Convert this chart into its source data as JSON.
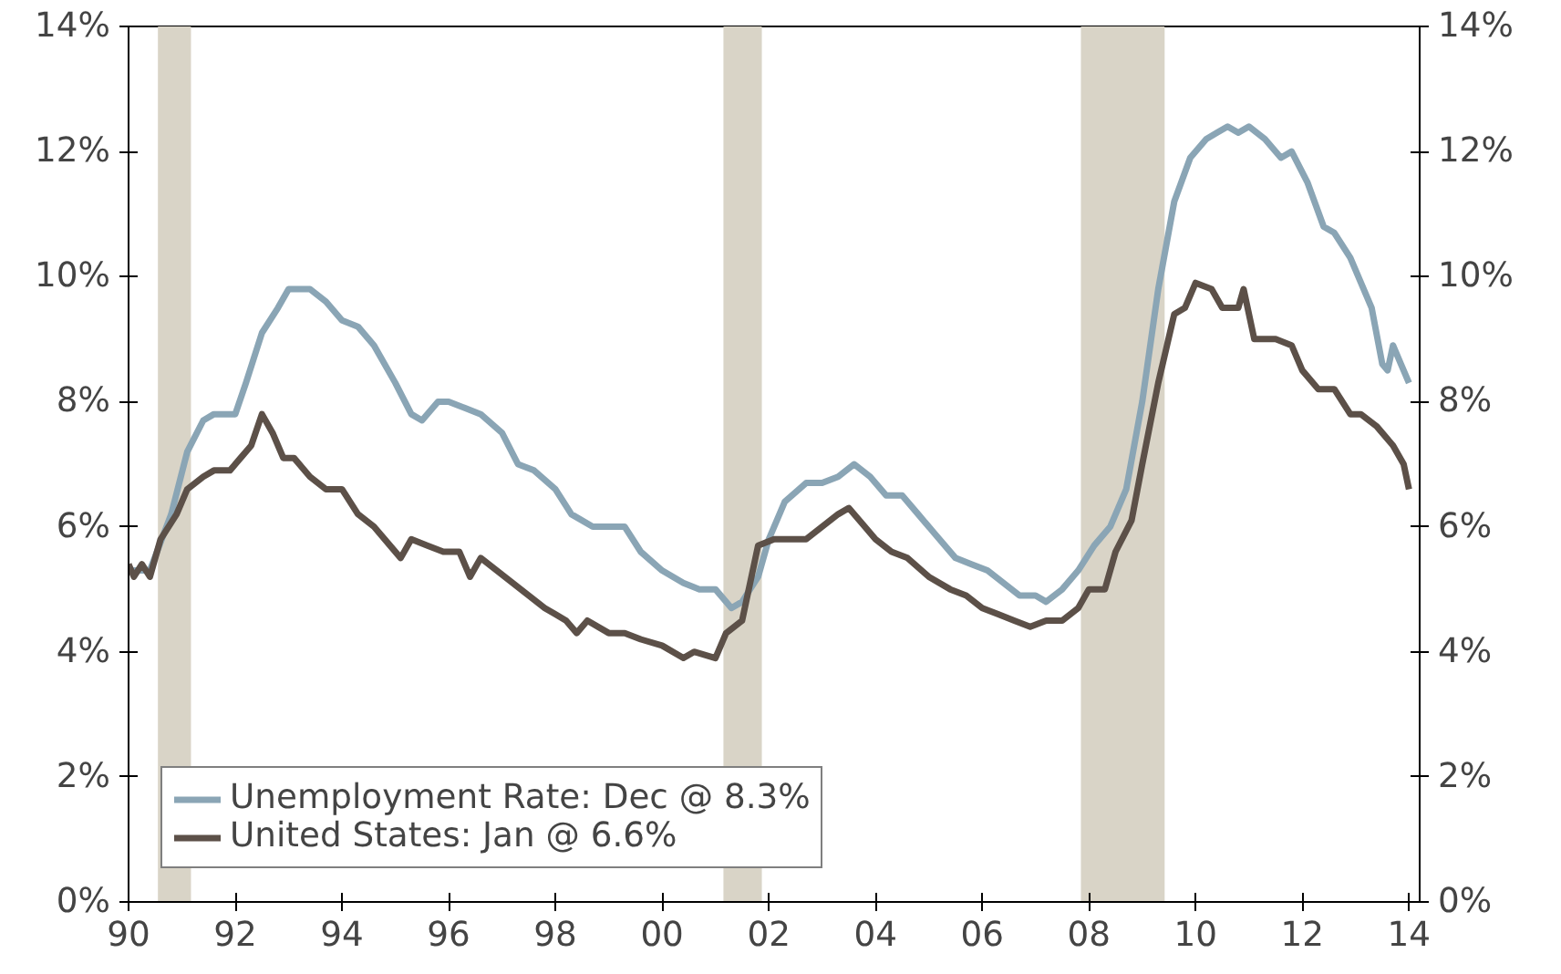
{
  "chart_data": {
    "type": "line",
    "x": [
      1990.0,
      1990.4,
      1990.8,
      1991.1,
      1991.4,
      1991.6,
      1992.0,
      1992.2,
      1992.5,
      1992.8,
      1993.0,
      1993.4,
      1993.7,
      1994.0,
      1994.3,
      1994.6,
      1995.0,
      1995.3,
      1995.5,
      1995.8,
      1996.0,
      1996.3,
      1996.6,
      1997.0,
      1997.3,
      1997.6,
      1998.0,
      1998.3,
      1998.7,
      1999.0,
      1999.3,
      1999.6,
      2000.0,
      2000.4,
      2000.7,
      2001.0,
      2001.3,
      2001.5,
      2001.8,
      2002.0,
      2002.3,
      2002.7,
      2003.0,
      2003.3,
      2003.6,
      2003.9,
      2004.2,
      2004.5,
      2004.8,
      2005.1,
      2005.5,
      2005.8,
      2006.1,
      2006.4,
      2006.7,
      2007.0,
      2007.2,
      2007.5,
      2007.8,
      2008.1,
      2008.4,
      2008.7,
      2009.0,
      2009.3,
      2009.6,
      2009.9,
      2010.2,
      2010.4,
      2010.6,
      2010.8,
      2011.0,
      2011.3,
      2011.6,
      2011.8,
      2012.1,
      2012.4,
      2012.6,
      2012.9,
      2013.1,
      2013.3,
      2013.5,
      2013.6,
      2013.7,
      2013.85,
      2014.0
    ],
    "series": [
      {
        "name": "Unemployment Rate: Dec @ 8.3%",
        "color": "#8aa5b5",
        "values": [
          5.3,
          5.3,
          6.2,
          7.2,
          7.7,
          7.8,
          7.8,
          8.3,
          9.1,
          9.5,
          9.8,
          9.8,
          9.6,
          9.3,
          9.2,
          8.9,
          8.3,
          7.8,
          7.7,
          8.0,
          8.0,
          7.9,
          7.8,
          7.5,
          7.0,
          6.9,
          6.6,
          6.2,
          6.0,
          6.0,
          6.0,
          5.6,
          5.3,
          5.1,
          5.0,
          5.0,
          4.7,
          4.8,
          5.2,
          5.8,
          6.4,
          6.7,
          6.7,
          6.8,
          7.0,
          6.8,
          6.5,
          6.5,
          6.2,
          5.9,
          5.5,
          5.4,
          5.3,
          5.1,
          4.9,
          4.9,
          4.8,
          5.0,
          5.3,
          5.7,
          6.0,
          6.6,
          8.0,
          9.8,
          11.2,
          11.9,
          12.2,
          12.3,
          12.4,
          12.3,
          12.4,
          12.2,
          11.9,
          12.0,
          11.5,
          10.8,
          10.7,
          10.3,
          9.9,
          9.5,
          8.6,
          8.5,
          8.9,
          8.6,
          8.3
        ]
      },
      {
        "name": "United States: Jan @ 6.6%",
        "color": "#5c5048",
        "x": [
          1990.0,
          1990.1,
          1990.25,
          1990.4,
          1990.6,
          1990.9,
          1991.1,
          1991.4,
          1991.6,
          1991.9,
          1992.1,
          1992.3,
          1992.5,
          1992.7,
          1992.9,
          1993.1,
          1993.4,
          1993.7,
          1994.0,
          1994.3,
          1994.6,
          1994.9,
          1995.1,
          1995.3,
          1995.6,
          1995.9,
          1996.2,
          1996.4,
          1996.6,
          1996.9,
          1997.2,
          1997.5,
          1997.8,
          1998.0,
          1998.2,
          1998.4,
          1998.6,
          1999.0,
          1999.3,
          1999.6,
          2000.0,
          2000.4,
          2000.6,
          2001.0,
          2001.2,
          2001.5,
          2001.8,
          2002.1,
          2002.4,
          2002.7,
          2003.0,
          2003.3,
          2003.5,
          2003.8,
          2004.0,
          2004.3,
          2004.6,
          2005.0,
          2005.4,
          2005.7,
          2006.0,
          2006.3,
          2006.6,
          2006.9,
          2007.2,
          2007.5,
          2007.8,
          2008.0,
          2008.3,
          2008.5,
          2008.8,
          2009.0,
          2009.3,
          2009.6,
          2009.8,
          2010.0,
          2010.3,
          2010.5,
          2010.8,
          2010.9,
          2011.1,
          2011.5,
          2011.8,
          2012.0,
          2012.3,
          2012.6,
          2012.9,
          2013.1,
          2013.4,
          2013.7,
          2013.9,
          2014.0
        ],
        "values": [
          5.4,
          5.2,
          5.4,
          5.2,
          5.8,
          6.2,
          6.6,
          6.8,
          6.9,
          6.9,
          7.1,
          7.3,
          7.8,
          7.5,
          7.1,
          7.1,
          6.8,
          6.6,
          6.6,
          6.2,
          6.0,
          5.7,
          5.5,
          5.8,
          5.7,
          5.6,
          5.6,
          5.2,
          5.5,
          5.3,
          5.1,
          4.9,
          4.7,
          4.6,
          4.5,
          4.3,
          4.5,
          4.3,
          4.3,
          4.2,
          4.1,
          3.9,
          4.0,
          3.9,
          4.3,
          4.5,
          5.7,
          5.8,
          5.8,
          5.8,
          6.0,
          6.2,
          6.3,
          6.0,
          5.8,
          5.6,
          5.5,
          5.2,
          5.0,
          4.9,
          4.7,
          4.6,
          4.5,
          4.4,
          4.5,
          4.5,
          4.7,
          5.0,
          5.0,
          5.6,
          6.1,
          7.0,
          8.3,
          9.4,
          9.5,
          9.9,
          9.8,
          9.5,
          9.5,
          9.8,
          9.0,
          9.0,
          8.9,
          8.5,
          8.2,
          8.2,
          7.8,
          7.8,
          7.6,
          7.3,
          7.0,
          6.6
        ]
      }
    ],
    "xlim": [
      1990,
      2014.2
    ],
    "xticks": [
      {
        "value": 1990,
        "label": "90"
      },
      {
        "value": 1992,
        "label": "92"
      },
      {
        "value": 1994,
        "label": "94"
      },
      {
        "value": 1996,
        "label": "96"
      },
      {
        "value": 1998,
        "label": "98"
      },
      {
        "value": 2000,
        "label": "00"
      },
      {
        "value": 2002,
        "label": "02"
      },
      {
        "value": 2004,
        "label": "04"
      },
      {
        "value": 2006,
        "label": "06"
      },
      {
        "value": 2008,
        "label": "08"
      },
      {
        "value": 2010,
        "label": "10"
      },
      {
        "value": 2012,
        "label": "12"
      },
      {
        "value": 2014,
        "label": "14"
      }
    ],
    "ylim": [
      0,
      14
    ],
    "yticks": [
      {
        "value": 0,
        "label": "0%"
      },
      {
        "value": 2,
        "label": "2%"
      },
      {
        "value": 4,
        "label": "4%"
      },
      {
        "value": 6,
        "label": "6%"
      },
      {
        "value": 8,
        "label": "8%"
      },
      {
        "value": 10,
        "label": "10%"
      },
      {
        "value": 12,
        "label": "12%"
      },
      {
        "value": 14,
        "label": "14%"
      }
    ],
    "y2lim": [
      0,
      14
    ],
    "y2ticks": [
      {
        "value": 0,
        "label": "0%"
      },
      {
        "value": 2,
        "label": "2%"
      },
      {
        "value": 4,
        "label": "4%"
      },
      {
        "value": 6,
        "label": "6%"
      },
      {
        "value": 8,
        "label": "8%"
      },
      {
        "value": 10,
        "label": "10%"
      },
      {
        "value": 12,
        "label": "12%"
      },
      {
        "value": 14,
        "label": "14%"
      }
    ],
    "bands": [
      {
        "axis": "x",
        "from": 1990.55,
        "to": 1991.17,
        "color": "#d9d4c7"
      },
      {
        "axis": "x",
        "from": 2001.15,
        "to": 2001.87,
        "color": "#d9d4c7"
      },
      {
        "axis": "x",
        "from": 2007.85,
        "to": 2009.42,
        "color": "#d9d4c7"
      }
    ],
    "grid": false,
    "legend": "bottom left",
    "line_style": "solid",
    "marker": "none"
  }
}
